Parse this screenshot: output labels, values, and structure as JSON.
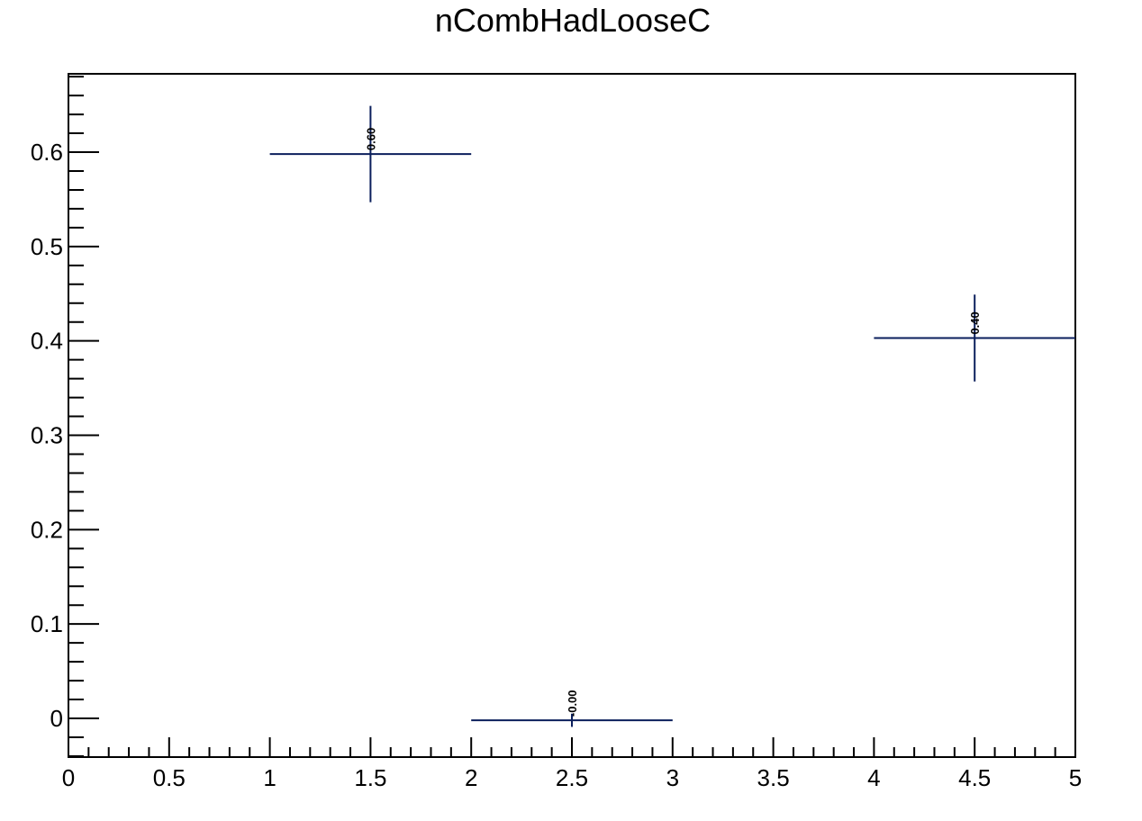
{
  "chart_data": {
    "type": "scatter",
    "title": "nCombHadLooseC",
    "xlabel": "",
    "ylabel": "",
    "xlim": [
      0,
      5
    ],
    "ylim": [
      -0.041,
      0.683
    ],
    "x_ticks": [
      0,
      0.5,
      1,
      1.5,
      2,
      2.5,
      3,
      3.5,
      4,
      4.5,
      5
    ],
    "x_tick_labels": [
      "0",
      "0.5",
      "1",
      "1.5",
      "2",
      "2.5",
      "3",
      "3.5",
      "4",
      "4.5",
      "5"
    ],
    "y_ticks": [
      0,
      0.1,
      0.2,
      0.3,
      0.4,
      0.5,
      0.6
    ],
    "y_tick_labels": [
      "0",
      "0.1",
      "0.2",
      "0.3",
      "0.4",
      "0.5",
      "0.6"
    ],
    "grid": false,
    "marker_color": "#0b1f5c",
    "points": [
      {
        "x": 1.5,
        "y": 0.598,
        "x_low": 1,
        "x_high": 2,
        "y_err_low": 0.051,
        "y_err_high": 0.051,
        "label": "0.60"
      },
      {
        "x": 2.5,
        "y": -0.002,
        "x_low": 2,
        "x_high": 3,
        "y_err_low": 0.007,
        "y_err_high": 0.007,
        "label": "-0.00"
      },
      {
        "x": 4.5,
        "y": 0.403,
        "x_low": 4,
        "x_high": 5,
        "y_err_low": 0.046,
        "y_err_high": 0.046,
        "label": "0.40"
      }
    ]
  }
}
